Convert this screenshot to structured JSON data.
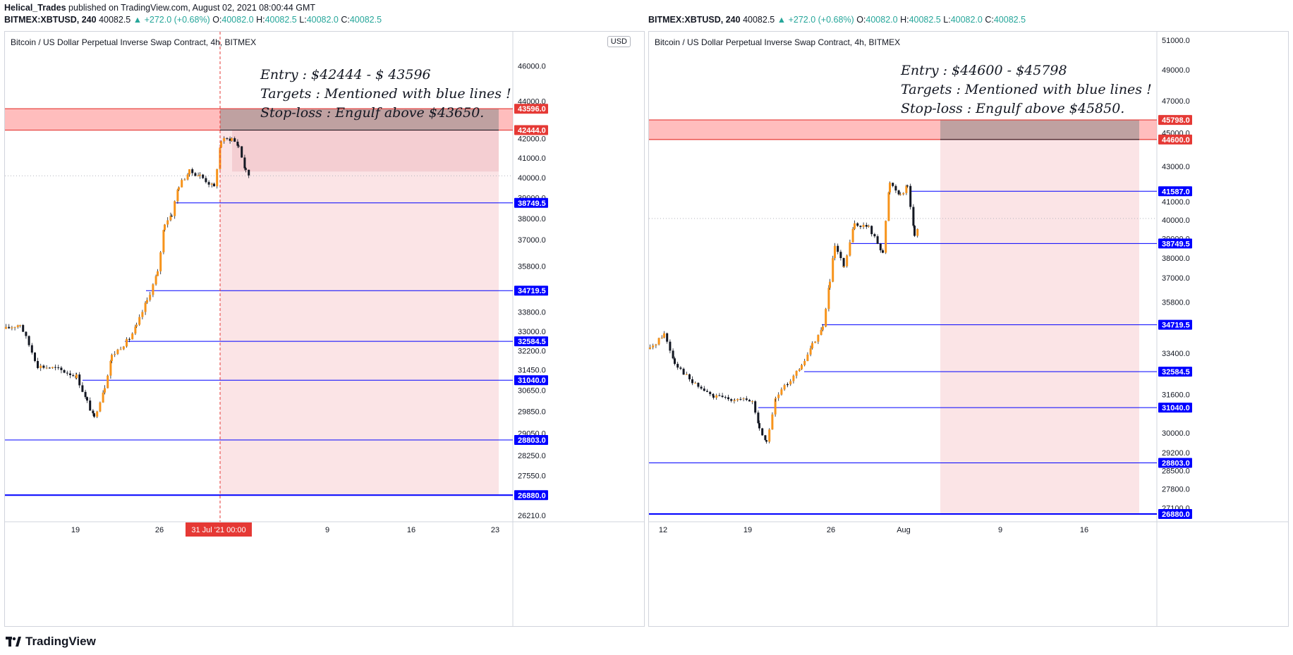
{
  "header": {
    "publisher": "Helical_Trades",
    "published_text": "published on TradingView.com, August 02, 2021 08:00:44 GMT",
    "symbol": "BITMEX:XBTUSD, 240",
    "last": "40082.5",
    "change": "▲ +272.0 (+0.68%)",
    "o_label": "O:",
    "o": "40082.0",
    "h_label": "H:",
    "h": "40082.5",
    "l_label": "L:",
    "l": "40082.0",
    "c_label": "C:",
    "c": "40082.5"
  },
  "footer": {
    "brand": "TradingView"
  },
  "colors": {
    "up": "#ffffff",
    "down": "#131722",
    "candle_body": "#f7931a",
    "target_line": "#0000ff",
    "entry_zone": "#ff9999",
    "stop_zone": "#f7c9cd",
    "green": "#26a69a"
  },
  "chart_data": [
    {
      "type": "candlestick",
      "title": "Bitcoin / US Dollar Perpetual Inverse Swap Contract, 4h, BITMEX",
      "currency": "USD",
      "y_scale": "log",
      "ylim": [
        26000,
        47500
      ],
      "y_ticks": [
        "46000.0",
        "44000.0",
        "42000.0",
        "41000.0",
        "40000.0",
        "39000.0",
        "38000.0",
        "37000.0",
        "35800.0",
        "33800.0",
        "33000.0",
        "32200.0",
        "31450.0",
        "30650.0",
        "29850.0",
        "29050.0",
        "28250.0",
        "27550.0",
        "26210.0"
      ],
      "x_ticks": [
        "19",
        "26",
        "31 Jul '21  00:00",
        "9",
        "16",
        "23"
      ],
      "note_lines": [
        "Entry : $42444 - $ 43596",
        "Targets : Mentioned with blue lines !",
        "Stop-loss : Engulf above $43650."
      ],
      "entry_zone": [
        42444.0,
        43596.0
      ],
      "entry_labels": [
        "43596.0",
        "42444.0"
      ],
      "targets": [
        38749.5,
        34719.5,
        32584.5,
        31040.0,
        28803.0,
        26880.0
      ],
      "target_labels": [
        "38749.5",
        "34719.5",
        "32584.5",
        "31040.0",
        "28803.0",
        "26880.0"
      ],
      "cursor_x_label": "31 Jul '21  00:00"
    },
    {
      "type": "candlestick",
      "title": "Bitcoin / US Dollar Perpetual Inverse Swap Contract, 4h, BITMEX",
      "y_scale": "log",
      "ylim": [
        26600,
        51500
      ],
      "y_ticks": [
        "51000.0",
        "49000.0",
        "47000.0",
        "45000.0",
        "43000.0",
        "41000.0",
        "40000.0",
        "39000.0",
        "38000.0",
        "37000.0",
        "35800.0",
        "33400.0",
        "31600.0",
        "30000.0",
        "29200.0",
        "28500.0",
        "27800.0",
        "27100.0"
      ],
      "x_ticks": [
        "12",
        "19",
        "26",
        "Aug",
        "9",
        "16"
      ],
      "note_lines": [
        "Entry : $44600 - $45798",
        "Targets : Mentioned with blue lines !",
        "Stop-loss : Engulf above $45850."
      ],
      "entry_zone": [
        44600.0,
        45798.0
      ],
      "entry_labels": [
        "45798.0",
        "44600.0"
      ],
      "targets": [
        41587.0,
        38749.5,
        34719.5,
        32584.5,
        31040.0,
        28803.0,
        26880.0
      ],
      "target_labels": [
        "41587.0",
        "38749.5",
        "34719.5",
        "32584.5",
        "31040.0",
        "28803.0",
        "26880.0"
      ]
    }
  ]
}
